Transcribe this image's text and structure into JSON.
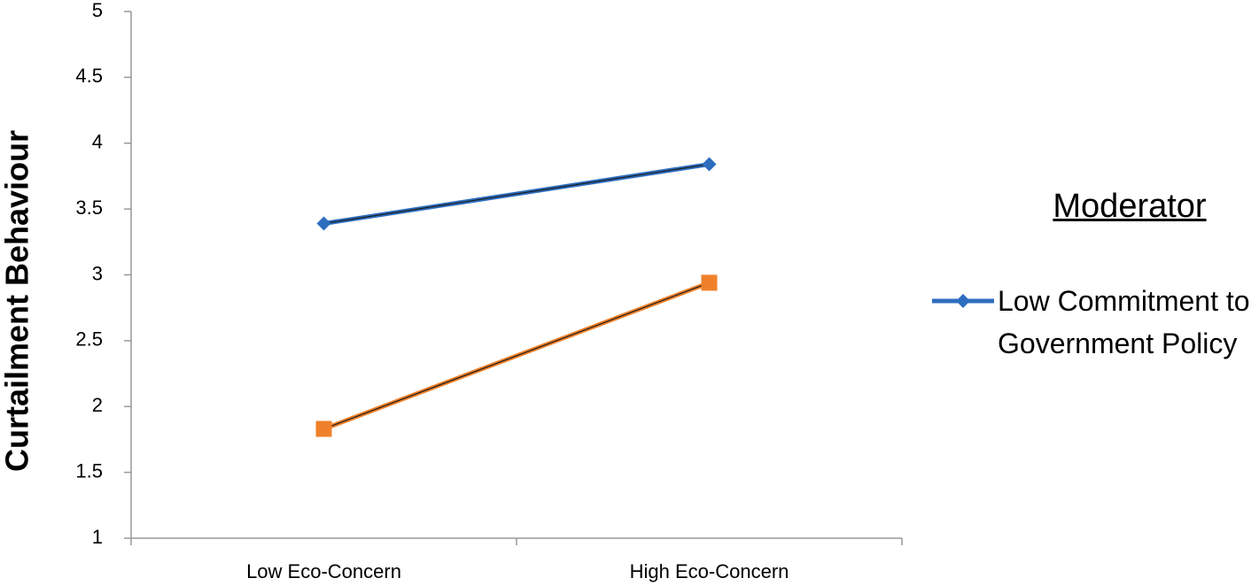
{
  "chart_data": {
    "type": "line",
    "y_label": "Curtailment Behaviour",
    "legend_title": "Moderator",
    "categories": [
      "Low Eco-Concern",
      "High Eco-Concern"
    ],
    "series": [
      {
        "name": "Low Commitment to Government Policy",
        "color": "#2e6ebf",
        "marker": "diamond",
        "values": [
          3.39,
          3.84
        ]
      },
      {
        "color": "#f0812a",
        "marker": "square",
        "values": [
          1.83,
          2.94
        ]
      }
    ],
    "ylim": [
      1,
      5
    ],
    "yticks": [
      1,
      1.5,
      2,
      2.5,
      3,
      3.5,
      4,
      4.5,
      5
    ]
  }
}
